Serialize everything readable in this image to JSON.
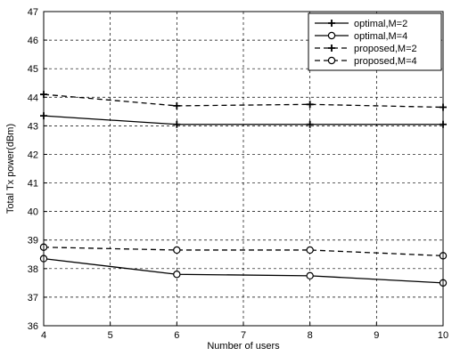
{
  "chart_data": {
    "type": "line",
    "title": "",
    "xlabel": "Number of users",
    "ylabel": "Total Tx power(dBm)",
    "xlim": [
      4,
      10
    ],
    "ylim": [
      36,
      47
    ],
    "xticks": [
      4,
      5,
      6,
      7,
      8,
      9,
      10
    ],
    "yticks": [
      36,
      37,
      38,
      39,
      40,
      41,
      42,
      43,
      44,
      45,
      46,
      47
    ],
    "grid": true,
    "legend_position": "top-right",
    "series": [
      {
        "name": "optimal,M=2",
        "x": [
          4,
          6,
          8,
          10
        ],
        "y": [
          43.35,
          43.05,
          43.05,
          43.05
        ],
        "line": "solid",
        "marker": "plus"
      },
      {
        "name": "optimal,M=4",
        "x": [
          4,
          6,
          8,
          10
        ],
        "y": [
          38.35,
          37.8,
          37.75,
          37.5
        ],
        "line": "solid",
        "marker": "circle"
      },
      {
        "name": "proposed,M=2",
        "x": [
          4,
          6,
          8,
          10
        ],
        "y": [
          44.1,
          43.7,
          43.75,
          43.65
        ],
        "line": "dashed",
        "marker": "plus"
      },
      {
        "name": "proposed,M=4",
        "x": [
          4,
          6,
          8,
          10
        ],
        "y": [
          38.75,
          38.65,
          38.65,
          38.45
        ],
        "line": "dashed",
        "marker": "circle"
      }
    ]
  }
}
